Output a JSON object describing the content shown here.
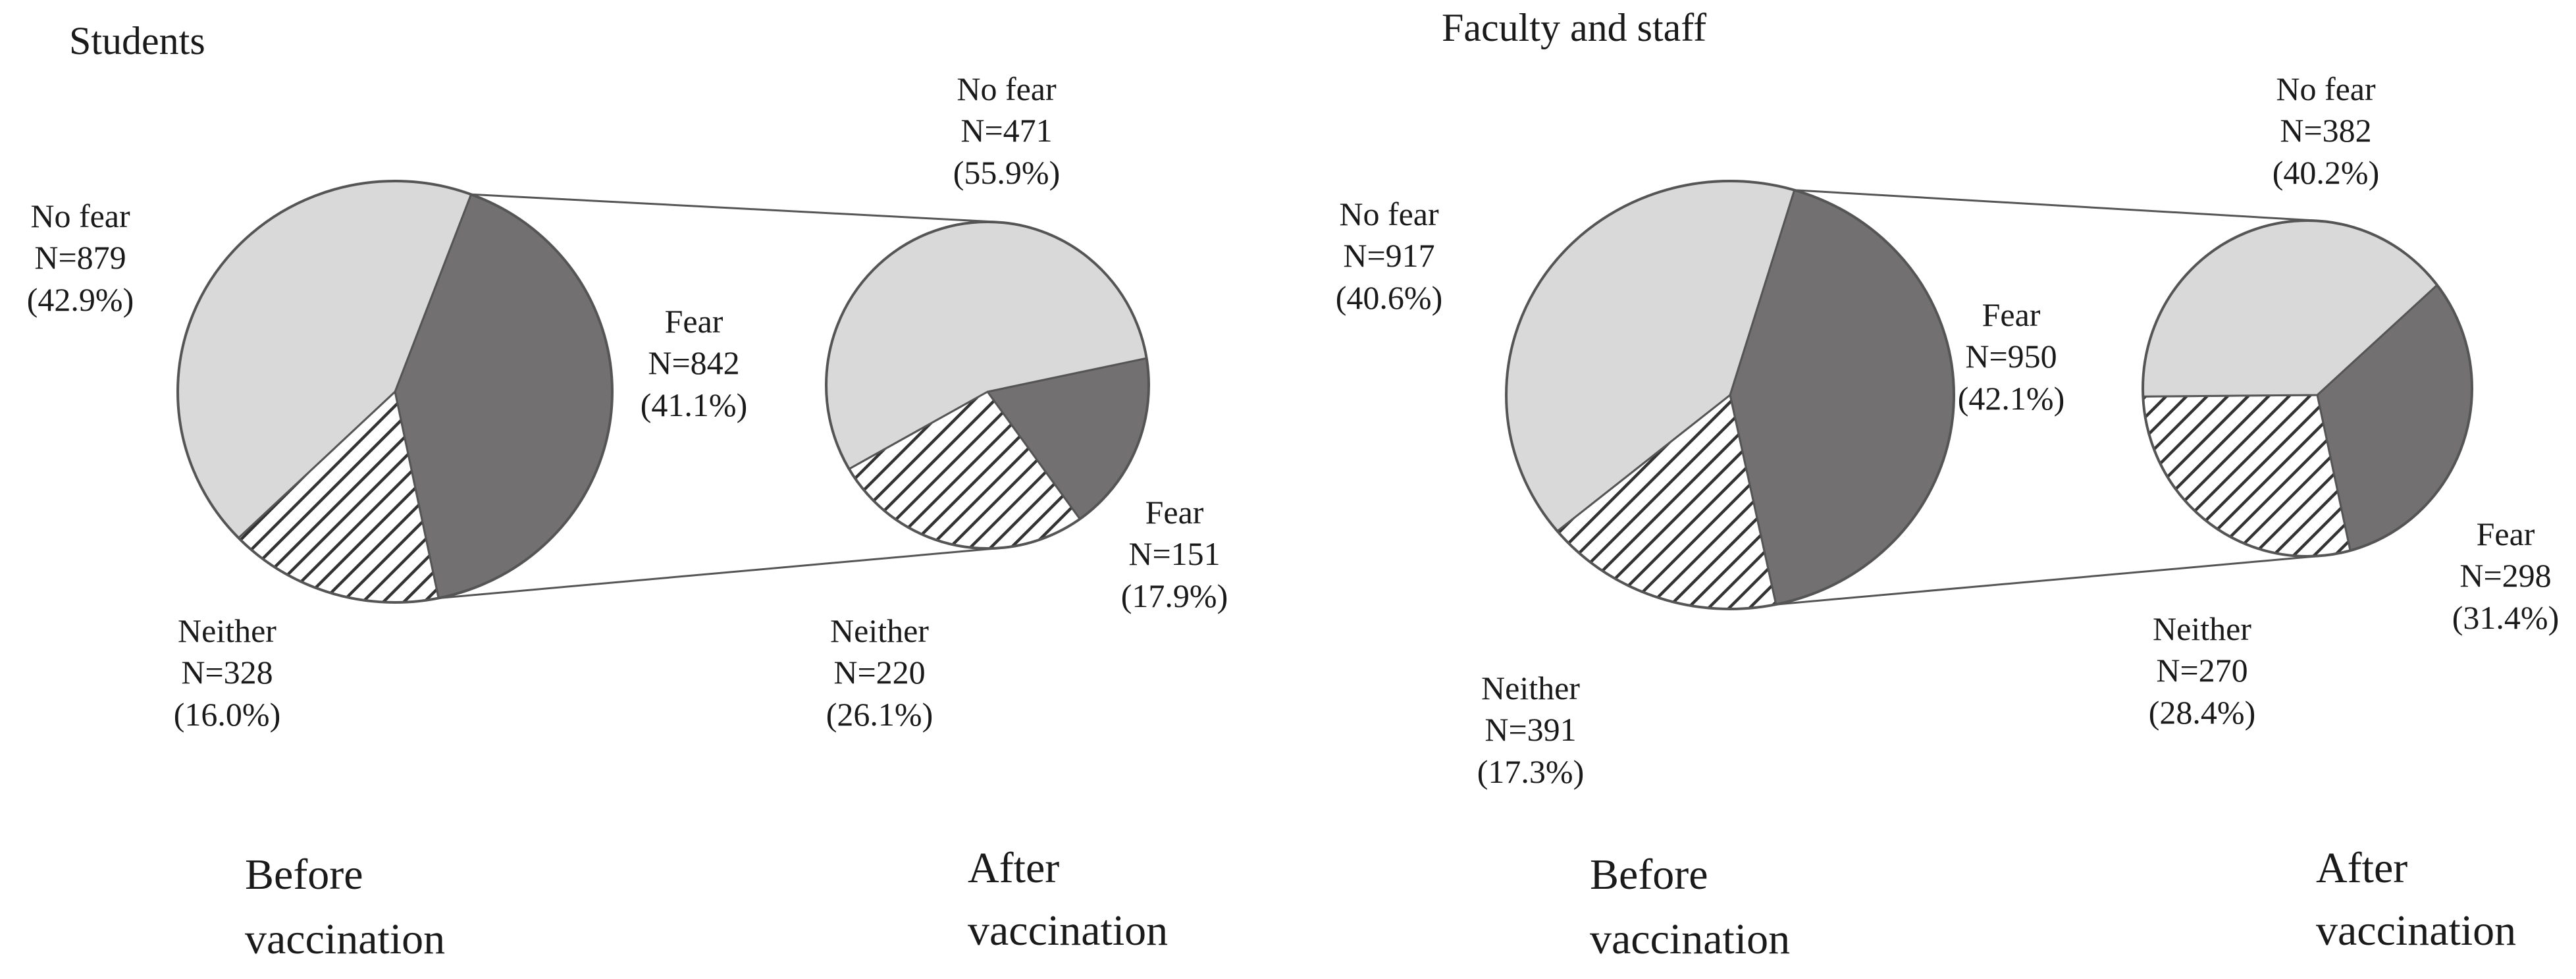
{
  "chart_data": [
    {
      "type": "pie",
      "title": "Students",
      "pies": [
        {
          "caption": [
            "Before",
            "vaccination"
          ],
          "slices": [
            {
              "key": "nofear",
              "label": "No fear",
              "n": "N=879",
              "pct": "(42.9%)",
              "value": 879,
              "percent": 42.9
            },
            {
              "key": "fear",
              "label": "Fear",
              "n": "N=842",
              "pct": "(41.1%)",
              "value": 842,
              "percent": 41.1
            },
            {
              "key": "neither",
              "label": "Neither",
              "n": "N=328",
              "pct": "(16.0%)",
              "value": 328,
              "percent": 16.0
            }
          ]
        },
        {
          "caption": [
            "After",
            "vaccination"
          ],
          "slices": [
            {
              "key": "nofear",
              "label": "No fear",
              "n": "N=471",
              "pct": "(55.9%)",
              "value": 471,
              "percent": 55.9
            },
            {
              "key": "fear",
              "label": "Fear",
              "n": "N=151",
              "pct": "(17.9%)",
              "value": 151,
              "percent": 17.9
            },
            {
              "key": "neither",
              "label": "Neither",
              "n": "N=220",
              "pct": "(26.1%)",
              "value": 220,
              "percent": 26.1
            }
          ]
        }
      ]
    },
    {
      "type": "pie",
      "title": "Faculty and staff",
      "pies": [
        {
          "caption": [
            "Before",
            "vaccination"
          ],
          "slices": [
            {
              "key": "nofear",
              "label": "No fear",
              "n": "N=917",
              "pct": "(40.6%)",
              "value": 917,
              "percent": 40.6
            },
            {
              "key": "fear",
              "label": "Fear",
              "n": "N=950",
              "pct": "(42.1%)",
              "value": 950,
              "percent": 42.1
            },
            {
              "key": "neither",
              "label": "Neither",
              "n": "N=391",
              "pct": "(17.3%)",
              "value": 391,
              "percent": 17.3
            }
          ]
        },
        {
          "caption": [
            "After",
            "vaccination"
          ],
          "slices": [
            {
              "key": "nofear",
              "label": "No fear",
              "n": "N=382",
              "pct": "(40.2%)",
              "value": 382,
              "percent": 40.2
            },
            {
              "key": "fear",
              "label": "Fear",
              "n": "N=298",
              "pct": "(31.4%)",
              "value": 298,
              "percent": 31.4
            },
            {
              "key": "neither",
              "label": "Neither",
              "n": "N=270",
              "pct": "(28.4%)",
              "value": 270,
              "percent": 28.4
            }
          ]
        }
      ]
    }
  ],
  "colors": {
    "nofear": "#d9d9d9",
    "fear": "#727070",
    "neither_hatch": "#333333",
    "outline": "#555555"
  }
}
